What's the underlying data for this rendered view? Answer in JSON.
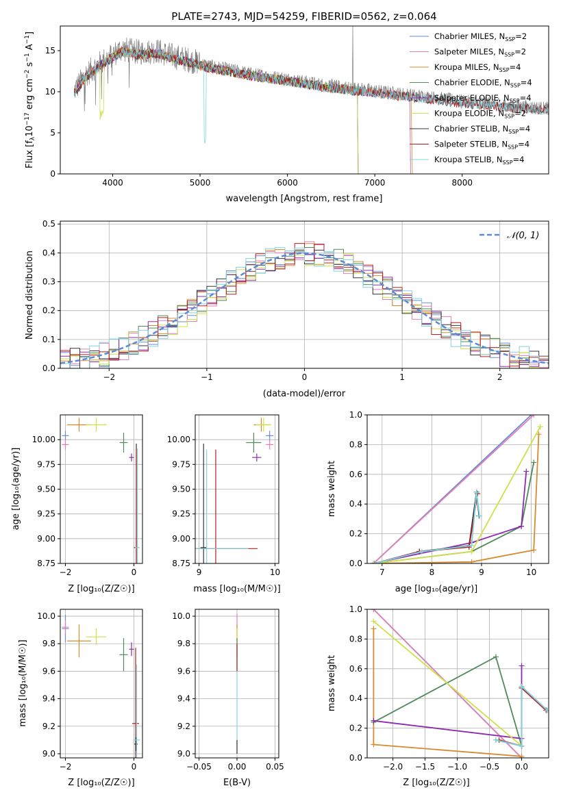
{
  "colors": {
    "chab_miles": "#6a8bd6",
    "salp_miles": "#e57fb4",
    "krou_miles": "#d88a2e",
    "chab_elodie": "#4e8a5a",
    "salp_elodie": "#8d2bb0",
    "krou_elodie": "#cfe048",
    "chab_stelib": "#333333",
    "salp_stelib": "#b51e1e",
    "krou_stelib": "#7fd4e0",
    "observed": "#808080",
    "normal": "#5b8bd6",
    "grid": "#b0b0b0"
  },
  "chart_data": [
    {
      "id": "spectrum",
      "type": "line",
      "title": "PLATE=2743, MJD=54259, FIBERID=0562, z=0.064",
      "xlabel": "wavelength [Angstrom, rest frame]",
      "ylabel_main": "Flux [f",
      "ylabel_sub": "λ",
      "ylabel_mid": "10",
      "ylabel_exp": "−17",
      "ylabel_tail": " erg cm",
      "ylabel_exp2": "−2",
      "ylabel_tail2": " s",
      "ylabel_exp3": "−1",
      "ylabel_tail3": " A",
      "ylabel_exp4": "−1",
      "ylabel_end": "]",
      "xlim": [
        3400,
        8990
      ],
      "ylim": [
        0,
        18
      ],
      "xticks": [
        "4000",
        "5000",
        "6000",
        "7000",
        "8000"
      ],
      "xtick_values": [
        4000,
        5000,
        6000,
        7000,
        8000
      ],
      "yticks": [
        "0",
        "5",
        "10",
        "15"
      ],
      "ytick_values": [
        0,
        5,
        10,
        15
      ],
      "grid": false,
      "legend_position": "top-right",
      "legend": [
        {
          "name": "Chabrier MILES, N",
          "sub": "SSP",
          "tail": "=2",
          "color_key": "chab_miles"
        },
        {
          "name": "Salpeter MILES, N",
          "sub": "SSP",
          "tail": "=2",
          "color_key": "salp_miles"
        },
        {
          "name": "Kroupa MILES, N",
          "sub": "SSP",
          "tail": "=4",
          "color_key": "krou_miles"
        },
        {
          "name": "Chabrier ELODIE, N",
          "sub": "SSP",
          "tail": "=4",
          "color_key": "chab_elodie"
        },
        {
          "name": "Salpeter ELODIE, N",
          "sub": "SSP",
          "tail": "=4",
          "color_key": "salp_elodie"
        },
        {
          "name": "Kroupa ELODIE, N",
          "sub": "SSP",
          "tail": "=2",
          "color_key": "krou_elodie"
        },
        {
          "name": "Chabrier STELIB, N",
          "sub": "SSP",
          "tail": "=4",
          "color_key": "chab_stelib"
        },
        {
          "name": "Salpeter STELIB, N",
          "sub": "SSP",
          "tail": "=4",
          "color_key": "salp_stelib"
        },
        {
          "name": "Kroupa STELIB, N",
          "sub": "SSP",
          "tail": "=4",
          "color_key": "krou_stelib"
        }
      ],
      "continuum": [
        [
          3550,
          10.0
        ],
        [
          3700,
          12.2
        ],
        [
          3900,
          13.8
        ],
        [
          4100,
          15.2
        ],
        [
          4300,
          14.8
        ],
        [
          4500,
          15.0
        ],
        [
          4700,
          14.3
        ],
        [
          4900,
          13.8
        ],
        [
          5100,
          13.2
        ],
        [
          5300,
          12.8
        ],
        [
          5600,
          12.2
        ],
        [
          6000,
          11.6
        ],
        [
          6400,
          10.9
        ],
        [
          6800,
          10.4
        ],
        [
          7200,
          9.9
        ],
        [
          7600,
          9.4
        ],
        [
          8000,
          8.9
        ],
        [
          8500,
          8.4
        ],
        [
          8990,
          8.0
        ]
      ],
      "model_end_wavelengths": {
        "chab_miles": 7400,
        "salp_miles": 7400,
        "krou_miles": 7420,
        "chab_elodie": 6800,
        "salp_elodie": 6800,
        "krou_elodie": 6800,
        "chab_stelib": 8990,
        "salp_stelib": 8990,
        "krou_stelib": 8990
      }
    },
    {
      "id": "residuals",
      "type": "step",
      "xlabel": "(data-model)/error",
      "ylabel": "Normed distribution",
      "xlim": [
        -2.5,
        2.5
      ],
      "ylim": [
        0,
        0.51
      ],
      "xticks": [
        "−2",
        "−1",
        "0",
        "1",
        "2"
      ],
      "xtick_values": [
        -2,
        -1,
        0,
        1,
        2
      ],
      "yticks": [
        "0.0",
        "0.1",
        "0.2",
        "0.3",
        "0.4",
        "0.5"
      ],
      "ytick_values": [
        0,
        0.1,
        0.2,
        0.3,
        0.4,
        0.5
      ],
      "grid": true,
      "legend_position": "top-right",
      "legend_label": "𝒩(0, 1)",
      "normal_mean": 0,
      "normal_sigma": 1
    },
    {
      "id": "age_vs_Z",
      "type": "errorbar",
      "xlabel": "Z [log₁₀(Z/Z☉)]",
      "ylabel": "age  [log₁₀(age/yr)]",
      "xlim": [
        -2.15,
        0.25
      ],
      "ylim": [
        8.75,
        10.25
      ],
      "xticks": [
        "−2",
        "0"
      ],
      "xtick_values": [
        -2,
        0
      ],
      "yticks": [
        "8.75",
        "9.00",
        "9.25",
        "9.50",
        "9.75",
        "10.00"
      ],
      "ytick_values": [
        8.75,
        9.0,
        9.25,
        9.5,
        9.75,
        10.0
      ],
      "grid": true,
      "points": [
        {
          "c": "chab_miles",
          "x": -2.0,
          "y": 10.04,
          "xe": 0.1,
          "ye": 0.05
        },
        {
          "c": "salp_miles",
          "x": -2.0,
          "y": 9.95,
          "xe": 0.1,
          "ye": 0.05
        },
        {
          "c": "krou_miles",
          "x": -1.6,
          "y": 10.15,
          "xe": 0.35,
          "ye": 0.07
        },
        {
          "c": "krou_elodie",
          "x": -1.1,
          "y": 10.15,
          "xe": 0.3,
          "ye": 0.07
        },
        {
          "c": "chab_elodie",
          "x": -0.3,
          "y": 9.97,
          "xe": 0.12,
          "ye": 0.1
        },
        {
          "c": "salp_elodie",
          "x": -0.07,
          "y": 9.82,
          "xe": 0.07,
          "ye": 0.04
        },
        {
          "c": "chab_stelib",
          "x": 0.07,
          "y": 8.91,
          "xe": 0.05,
          "ye": 1.05
        },
        {
          "c": "salp_stelib",
          "x": 0.07,
          "y": 8.91,
          "xe": 0.07,
          "ye": 1.0
        },
        {
          "c": "krou_stelib",
          "x": 0.1,
          "y": 8.91,
          "xe": 0.07,
          "ye": 1.0
        }
      ]
    },
    {
      "id": "age_vs_mass",
      "type": "errorbar",
      "xlabel": "mass [log₁₀(M/M☉)]",
      "ylabel": "",
      "xlim": [
        8.95,
        10.05
      ],
      "ylim": [
        8.75,
        10.25
      ],
      "xticks": [
        "9",
        "10"
      ],
      "xtick_values": [
        9,
        10
      ],
      "yticks": [
        "8.75",
        "9.00",
        "9.25",
        "9.50",
        "9.75",
        "10.00"
      ],
      "ytick_values": [
        8.75,
        9.0,
        9.25,
        9.5,
        9.75,
        10.0
      ],
      "grid": true,
      "points": [
        {
          "c": "krou_miles",
          "x": 9.82,
          "y": 10.15,
          "xe": 0.1,
          "ye": 0.07
        },
        {
          "c": "krou_elodie",
          "x": 9.85,
          "y": 10.15,
          "xe": 0.1,
          "ye": 0.07
        },
        {
          "c": "chab_miles",
          "x": 9.93,
          "y": 10.04,
          "xe": 0.05,
          "ye": 0.05
        },
        {
          "c": "salp_miles",
          "x": 9.93,
          "y": 9.95,
          "xe": 0.05,
          "ye": 0.05
        },
        {
          "c": "chab_elodie",
          "x": 9.72,
          "y": 9.97,
          "xe": 0.1,
          "ye": 0.1
        },
        {
          "c": "salp_elodie",
          "x": 9.76,
          "y": 9.82,
          "xe": 0.06,
          "ye": 0.04
        },
        {
          "c": "salp_stelib",
          "x": 9.22,
          "y": 8.9,
          "xe": 0.55,
          "ye": 1.0
        },
        {
          "c": "chab_stelib",
          "x": 9.06,
          "y": 8.91,
          "xe": 0.04,
          "ye": 1.05
        },
        {
          "c": "krou_stelib",
          "x": 9.1,
          "y": 8.9,
          "xe": 0.55,
          "ye": 1.0
        }
      ]
    },
    {
      "id": "weight_vs_age",
      "type": "line",
      "xlabel": "age  [log₁₀(age/yr)]",
      "ylabel": "mass weight",
      "xlim": [
        6.7,
        10.35
      ],
      "ylim": [
        0,
        1.0
      ],
      "xticks": [
        "7",
        "8",
        "9",
        "10"
      ],
      "xtick_values": [
        7,
        8,
        9,
        10
      ],
      "yticks": [
        "0.0",
        "0.2",
        "0.4",
        "0.6",
        "0.8",
        "1.0"
      ],
      "ytick_values": [
        0,
        0.2,
        0.4,
        0.6,
        0.8,
        1.0
      ],
      "grid": true,
      "series": [
        {
          "c": "chab_miles",
          "points": [
            [
              6.83,
              0
            ],
            [
              10.0,
              1.0
            ]
          ]
        },
        {
          "c": "salp_miles",
          "points": [
            [
              6.83,
              0
            ],
            [
              10.05,
              1.0
            ]
          ]
        },
        {
          "c": "krou_miles",
          "points": [
            [
              6.83,
              0
            ],
            [
              8.8,
              0.01
            ],
            [
              10.05,
              0.09
            ],
            [
              10.15,
              0.87
            ]
          ]
        },
        {
          "c": "chab_elodie",
          "points": [
            [
              6.83,
              0
            ],
            [
              8.8,
              0.08
            ],
            [
              9.8,
              0.25
            ],
            [
              10.05,
              0.68
            ]
          ]
        },
        {
          "c": "salp_elodie",
          "points": [
            [
              6.83,
              0
            ],
            [
              8.8,
              0.14
            ],
            [
              9.8,
              0.25
            ],
            [
              9.9,
              0.62
            ]
          ]
        },
        {
          "c": "krou_elodie",
          "points": [
            [
              6.83,
              0
            ],
            [
              8.8,
              0.08
            ],
            [
              10.18,
              0.92
            ]
          ]
        },
        {
          "c": "chab_stelib",
          "points": [
            [
              6.85,
              0
            ],
            [
              7.75,
              0.08
            ],
            [
              8.75,
              0.12
            ],
            [
              8.9,
              0.48
            ],
            [
              8.95,
              0.32
            ]
          ]
        },
        {
          "c": "salp_stelib",
          "points": [
            [
              6.85,
              0
            ],
            [
              7.75,
              0.08
            ],
            [
              8.75,
              0.11
            ],
            [
              8.92,
              0.47
            ]
          ]
        },
        {
          "c": "krou_stelib",
          "points": [
            [
              6.85,
              0
            ],
            [
              7.8,
              0.08
            ],
            [
              8.8,
              0.12
            ],
            [
              8.9,
              0.48
            ],
            [
              8.96,
              0.32
            ]
          ]
        }
      ]
    },
    {
      "id": "mass_vs_Z",
      "type": "errorbar",
      "xlabel": "Z [log₁₀(Z/Z☉)]",
      "ylabel": "mass [log₁₀(M/M☉)]",
      "xlim": [
        -2.15,
        0.25
      ],
      "ylim": [
        8.97,
        10.05
      ],
      "xticks": [
        "−2",
        "0"
      ],
      "xtick_values": [
        -2,
        0
      ],
      "yticks": [
        "9.0",
        "9.2",
        "9.4",
        "9.6",
        "9.8",
        "10.0"
      ],
      "ytick_values": [
        9.0,
        9.2,
        9.4,
        9.6,
        9.8,
        10.0
      ],
      "grid": true,
      "points": [
        {
          "c": "chab_miles",
          "x": -2.0,
          "y": 9.91,
          "xe": 0.1,
          "ye": 0.1
        },
        {
          "c": "salp_miles",
          "x": -2.0,
          "y": 9.92,
          "xe": 0.1,
          "ye": 0.05
        },
        {
          "c": "krou_miles",
          "x": -1.6,
          "y": 9.82,
          "xe": 0.35,
          "ye": 0.12
        },
        {
          "c": "krou_elodie",
          "x": -1.1,
          "y": 9.85,
          "xe": 0.3,
          "ye": 0.06
        },
        {
          "c": "chab_elodie",
          "x": -0.3,
          "y": 9.72,
          "xe": 0.12,
          "ye": 0.12
        },
        {
          "c": "salp_elodie",
          "x": -0.07,
          "y": 9.76,
          "xe": 0.07,
          "ye": 0.05
        },
        {
          "c": "salp_stelib",
          "x": 0.05,
          "y": 9.22,
          "xe": 0.1,
          "ye": 0.55
        },
        {
          "c": "chab_stelib",
          "x": 0.06,
          "y": 9.07,
          "xe": 0.05,
          "ye": 0.05
        },
        {
          "c": "krou_stelib",
          "x": 0.08,
          "y": 9.1,
          "xe": 0.1,
          "ye": 0.55
        }
      ]
    },
    {
      "id": "mass_vs_ebv",
      "type": "errorbar",
      "xlabel": "E(B-V)",
      "ylabel": "",
      "xlim": [
        -0.055,
        0.055
      ],
      "ylim": [
        8.97,
        10.05
      ],
      "xticks": [
        "−0.05",
        "0.00",
        "0.05"
      ],
      "xtick_values": [
        -0.05,
        0,
        0.05
      ],
      "yticks": [
        "9.0",
        "9.2",
        "9.4",
        "9.6",
        "9.8",
        "10.0"
      ],
      "ytick_values": [
        9.0,
        9.2,
        9.4,
        9.6,
        9.8,
        10.0
      ],
      "grid": true,
      "points": [
        {
          "c": "salp_miles",
          "x": 0,
          "y": 9.92,
          "xe": 0,
          "ye": 0.1
        },
        {
          "c": "krou_miles",
          "x": 0,
          "y": 9.82,
          "xe": 0,
          "ye": 0.12
        },
        {
          "c": "krou_elodie",
          "x": 0,
          "y": 9.85,
          "xe": 0,
          "ye": 0.06
        },
        {
          "c": "chab_elodie",
          "x": 0,
          "y": 9.72,
          "xe": 0,
          "ye": 0.12
        },
        {
          "c": "salp_stelib",
          "x": 0,
          "y": 9.7,
          "xe": 0,
          "ye": 0.1
        },
        {
          "c": "krou_stelib",
          "x": 0,
          "y": 9.3,
          "xe": 0,
          "ye": 0.3
        },
        {
          "c": "chab_stelib",
          "x": 0,
          "y": 9.05,
          "xe": 0,
          "ye": 0.05
        }
      ]
    },
    {
      "id": "weight_vs_Z",
      "type": "line",
      "xlabel": "Z [log₁₀(Z/Z☉)]",
      "ylabel": "mass weight",
      "xlim": [
        -2.4,
        0.42
      ],
      "ylim": [
        0,
        1.0
      ],
      "xticks": [
        "−2.0",
        "−1.5",
        "−1.0",
        "−0.5",
        "0.0"
      ],
      "xtick_values": [
        -2.0,
        -1.5,
        -1.0,
        -0.5,
        0.0
      ],
      "yticks": [
        "0.0",
        "0.2",
        "0.4",
        "0.6",
        "0.8",
        "1.0"
      ],
      "ytick_values": [
        0,
        0.2,
        0.4,
        0.6,
        0.8,
        1.0
      ],
      "grid": true,
      "series": [
        {
          "c": "chab_miles",
          "points": [
            [
              -2.3,
              1.0
            ],
            [
              0.0,
              0.0
            ]
          ]
        },
        {
          "c": "salp_miles",
          "points": [
            [
              -2.3,
              1.0
            ],
            [
              0.0,
              0.0
            ]
          ]
        },
        {
          "c": "krou_miles",
          "points": [
            [
              -2.3,
              0.87
            ],
            [
              -2.3,
              0.09
            ],
            [
              0.0,
              0.01
            ]
          ]
        },
        {
          "c": "chab_elodie",
          "points": [
            [
              -2.3,
              0.24
            ],
            [
              -0.4,
              0.68
            ],
            [
              0.0,
              0.08
            ]
          ]
        },
        {
          "c": "salp_elodie",
          "points": [
            [
              -2.3,
              0.25
            ],
            [
              0.0,
              0.13
            ],
            [
              0.0,
              0.62
            ]
          ]
        },
        {
          "c": "krou_elodie",
          "points": [
            [
              -2.3,
              0.92
            ],
            [
              0.0,
              0.08
            ]
          ]
        },
        {
          "c": "chab_stelib",
          "points": [
            [
              -0.4,
              0.12
            ],
            [
              0.0,
              0.08
            ],
            [
              0.0,
              0.48
            ],
            [
              0.4,
              0.32
            ]
          ]
        },
        {
          "c": "salp_stelib",
          "points": [
            [
              -0.35,
              0.12
            ],
            [
              0.0,
              0.08
            ],
            [
              0.0,
              0.47
            ],
            [
              0.38,
              0.32
            ]
          ]
        },
        {
          "c": "krou_stelib",
          "points": [
            [
              -0.4,
              0.12
            ],
            [
              0.0,
              0.08
            ],
            [
              0.0,
              0.48
            ],
            [
              0.4,
              0.32
            ]
          ]
        }
      ]
    }
  ]
}
